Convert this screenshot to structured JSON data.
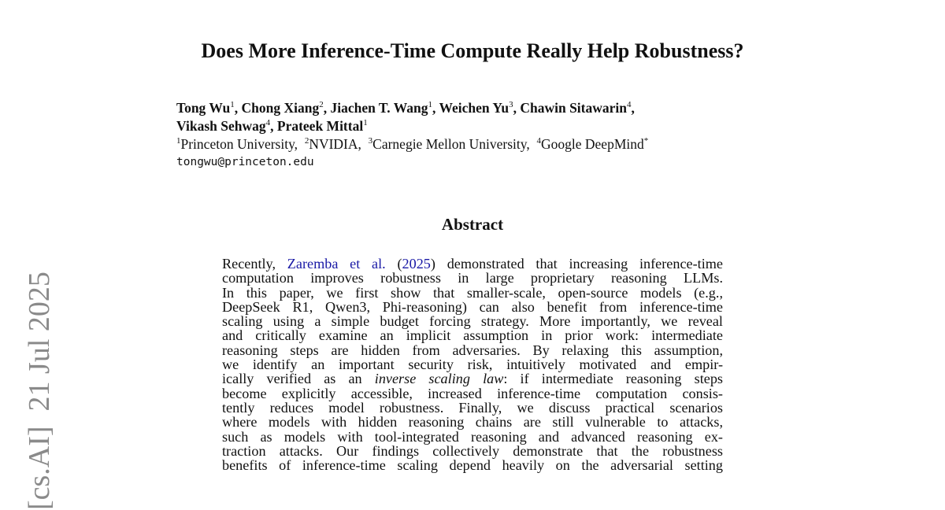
{
  "title": "Does More Inference-Time Compute Really Help Robustness?",
  "authors": [
    {
      "name": "Tong Wu",
      "aff": "1"
    },
    {
      "name": "Chong Xiang",
      "aff": "2"
    },
    {
      "name": "Jiachen T. Wang",
      "aff": "1"
    },
    {
      "name": "Weichen Yu",
      "aff": "3"
    },
    {
      "name": "Chawin Sitawarin",
      "aff": "4"
    },
    {
      "name": "Vikash Sehwag",
      "aff": "4"
    },
    {
      "name": "Prateek Mittal",
      "aff": "1"
    }
  ],
  "affiliations": [
    {
      "num": "1",
      "name": "Princeton University,"
    },
    {
      "num": "2",
      "name": "NVIDIA,"
    },
    {
      "num": "3",
      "name": "Carnegie Mellon University,"
    },
    {
      "num": "4",
      "name": "Google DeepMind",
      "mark": "*"
    }
  ],
  "email": "tongwu@princeton.edu",
  "abstract_heading": "Abstract",
  "abstract": {
    "l1_pre": "Recently, ",
    "l1_link1": "Zaremba et al.",
    "l1_mid": " (",
    "l1_link2": "2025",
    "l1_post": ") demonstrated that increasing inference-time",
    "lines": [
      "computation improves robustness in large proprietary reasoning LLMs.",
      "In this paper, we first show that smaller-scale, open-source models (e.g.,",
      "DeepSeek R1, Qwen3, Phi-reasoning) can also benefit from inference-time",
      "scaling using a simple budget forcing strategy. More importantly, we reveal",
      "and critically examine an implicit assumption in prior work: intermediate",
      "reasoning steps are hidden from adversaries. By relaxing this assumption,",
      "we identify an important security risk, intuitively motivated and empir-"
    ],
    "l9_pre": "ically verified as an ",
    "l9_em": "inverse scaling law",
    "l9_post": ": if intermediate reasoning steps",
    "lines2": [
      "become explicitly accessible, increased inference-time computation consis-",
      "tently reduces model robustness. Finally, we discuss practical scenarios",
      "where models with hidden reasoning chains are still vulnerable to attacks,",
      "such as models with tool-integrated reasoning and advanced reasoning ex-",
      "traction attacks. Our findings collectively demonstrate that the robustness",
      "benefits of inference-time scaling depend heavily on the adversarial setting"
    ]
  },
  "arxiv_stamp": "[cs.AI]  21 Jul 2025"
}
